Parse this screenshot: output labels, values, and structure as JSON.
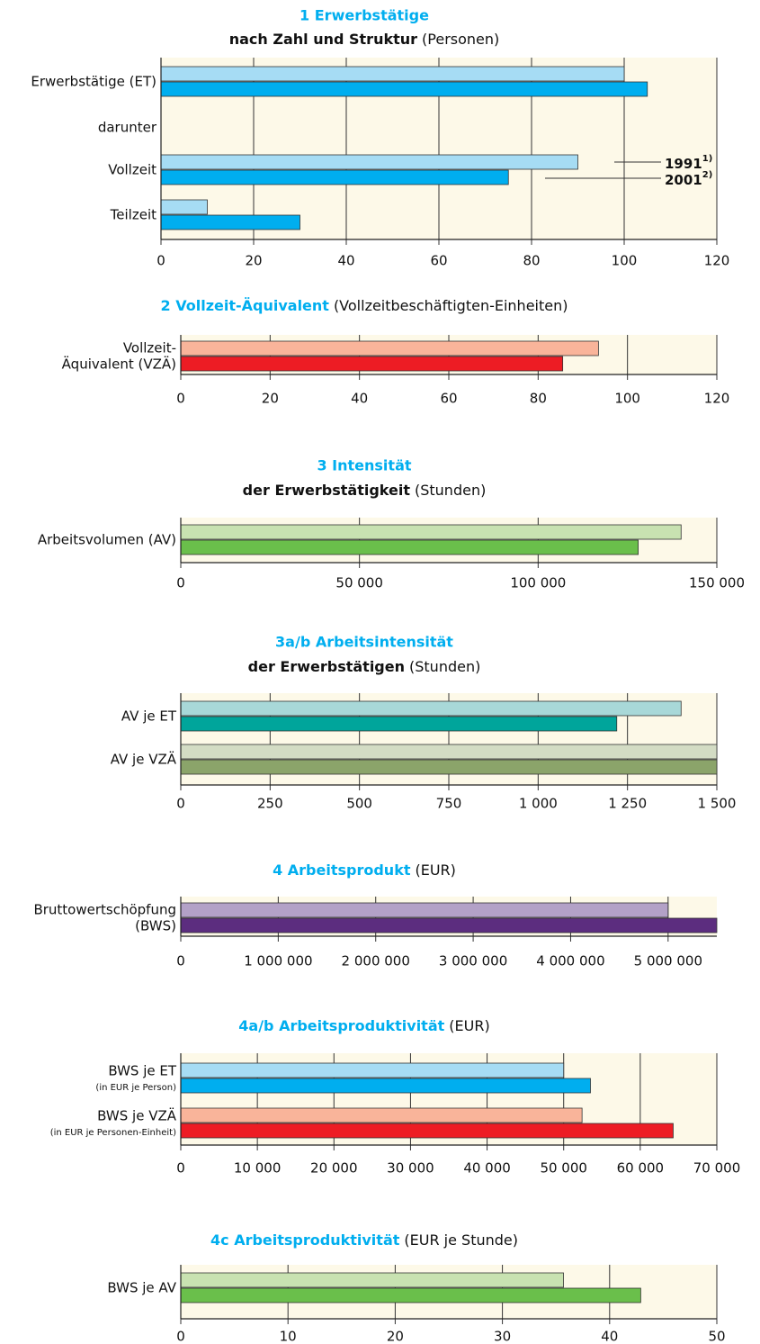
{
  "chart_data": [
    {
      "type": "bar",
      "title": "1 Erwerbstätige",
      "subtitle": "nach Zahl und Struktur",
      "unit": "(Personen)",
      "categories": [
        "Erwerbstätige (ET)",
        "darunter",
        "Vollzeit",
        "Teilzeit"
      ],
      "series": [
        {
          "name": "1991",
          "note": "1)",
          "colors": [
            "#a6dcf4",
            "#a6dcf4",
            "#a6dcf4",
            "#a6dcf4"
          ],
          "values": [
            100,
            null,
            90,
            10
          ]
        },
        {
          "name": "2001",
          "note": "2)",
          "colors": [
            "#00aeef",
            "#00aeef",
            "#00aeef",
            "#00aeef"
          ],
          "values": [
            105,
            null,
            75,
            30
          ]
        }
      ],
      "xlim": [
        0,
        120
      ],
      "xticks": [
        0,
        20,
        40,
        60,
        80,
        100,
        120
      ],
      "grid": true,
      "legend": "right"
    },
    {
      "type": "bar",
      "title": "2 Vollzeit-Äquivalent",
      "unit": "(Vollzeitbeschäftigten-Einheiten)",
      "categories": [
        [
          "Vollzeit-",
          "Äquivalent (VZÄ)"
        ]
      ],
      "series": [
        {
          "colors": [
            "#f9b49a"
          ],
          "values": [
            93.5
          ]
        },
        {
          "colors": [
            "#ed1c24"
          ],
          "values": [
            85.5
          ]
        }
      ],
      "xlim": [
        0,
        120
      ],
      "xticks": [
        0,
        20,
        40,
        60,
        80,
        100,
        120
      ],
      "grid": true
    },
    {
      "type": "bar",
      "title": "3 Intensität",
      "subtitle": "der Erwerbstätigkeit",
      "unit": "(Stunden)",
      "categories": [
        "Arbeitsvolumen (AV)"
      ],
      "series": [
        {
          "colors": [
            "#c8e2b1"
          ],
          "values": [
            140000
          ]
        },
        {
          "colors": [
            "#6abf4b"
          ],
          "values": [
            128000
          ]
        }
      ],
      "xlim": [
        0,
        150000
      ],
      "xticks": [
        0,
        {
          "value": 50000,
          "label": "50 000"
        },
        {
          "value": 100000,
          "label": "100 000"
        },
        {
          "value": 150000,
          "label": "150 000"
        }
      ],
      "grid": true
    },
    {
      "type": "bar",
      "title": "3a/b Arbeitsintensität",
      "subtitle": "der Erwerbstätigen",
      "unit": "(Stunden)",
      "categories": [
        "AV je ET",
        "AV je VZÄ"
      ],
      "series": [
        {
          "colors": [
            "#a8d8d8",
            "#d3dcc4"
          ],
          "values": [
            1400,
            1500
          ]
        },
        {
          "colors": [
            "#00a59b",
            "#8ba46a"
          ],
          "values": [
            1220,
            1500
          ]
        }
      ],
      "xlim": [
        0,
        1500
      ],
      "xticks": [
        0,
        250,
        500,
        750,
        {
          "value": 1000,
          "label": "1 000"
        },
        {
          "value": 1250,
          "label": "1 250"
        },
        {
          "value": 1500,
          "label": "1 500"
        }
      ],
      "grid": true
    },
    {
      "type": "bar",
      "title": "4 Arbeitsprodukt",
      "unit": "(EUR)",
      "categories": [
        [
          "Bruttowertschöpfung",
          "(BWS)"
        ]
      ],
      "series": [
        {
          "colors": [
            "#b3a1c7"
          ],
          "values": [
            5000000
          ]
        },
        {
          "colors": [
            "#5c2d7f"
          ],
          "values": [
            5500000
          ]
        }
      ],
      "xlim": [
        0,
        5500000
      ],
      "xticks": [
        0,
        {
          "value": 1000000,
          "label": "1 000 000"
        },
        {
          "value": 2000000,
          "label": "2 000 000"
        },
        {
          "value": 3000000,
          "label": "3 000 000"
        },
        {
          "value": 4000000,
          "label": "4 000 000"
        },
        {
          "value": 5000000,
          "label": "5 000 000"
        }
      ],
      "grid": true
    },
    {
      "type": "bar",
      "title": "4a/b Arbeitsproduktivität",
      "unit": "(EUR)",
      "categories": [
        "BWS je ET",
        "BWS je VZÄ"
      ],
      "category_notes": [
        "(in EUR je Person)",
        "(in EUR je Personen-Einheit)"
      ],
      "series": [
        {
          "colors": [
            "#a6dcf4",
            "#f9b49a"
          ],
          "values": [
            50000,
            52400
          ]
        },
        {
          "colors": [
            "#00aeef",
            "#ed1c24"
          ],
          "values": [
            53500,
            64300
          ]
        }
      ],
      "xlim": [
        0,
        70000
      ],
      "xticks": [
        0,
        {
          "value": 10000,
          "label": "10 000"
        },
        {
          "value": 20000,
          "label": "20 000"
        },
        {
          "value": 30000,
          "label": "30 000"
        },
        {
          "value": 40000,
          "label": "40 000"
        },
        {
          "value": 50000,
          "label": "50 000"
        },
        {
          "value": 60000,
          "label": "60 000"
        },
        {
          "value": 70000,
          "label": "70 000"
        }
      ],
      "grid": true
    },
    {
      "type": "bar",
      "title": "4c Arbeitsproduktivität",
      "unit": "(EUR je Stunde)",
      "categories": [
        "BWS je AV"
      ],
      "series": [
        {
          "colors": [
            "#c8e2b1"
          ],
          "values": [
            35.7
          ]
        },
        {
          "colors": [
            "#6abf4b"
          ],
          "values": [
            42.9
          ]
        }
      ],
      "xlim": [
        0,
        50
      ],
      "xticks": [
        0,
        10,
        20,
        30,
        40,
        50
      ],
      "grid": true
    }
  ]
}
